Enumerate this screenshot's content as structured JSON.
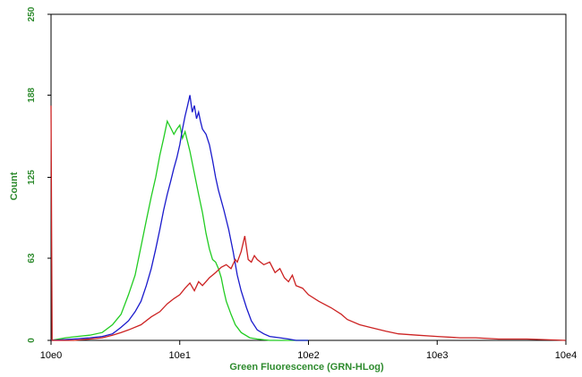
{
  "chart_data": {
    "type": "line",
    "title": "",
    "xlabel": "Green Fluorescence (GRN-HLog)",
    "ylabel": "Count",
    "x_scale": "log",
    "xlim": [
      1,
      10000
    ],
    "ylim": [
      0,
      250
    ],
    "x_ticks": [
      {
        "value": 1,
        "label": "10e0"
      },
      {
        "value": 10,
        "label": "10e1"
      },
      {
        "value": 100,
        "label": "10e2"
      },
      {
        "value": 1000,
        "label": "10e3"
      },
      {
        "value": 10000,
        "label": "10e4"
      }
    ],
    "y_ticks": [
      {
        "value": 0,
        "label": "0"
      },
      {
        "value": 63,
        "label": "63"
      },
      {
        "value": 125,
        "label": "125"
      },
      {
        "value": 188,
        "label": "188"
      },
      {
        "value": 250,
        "label": "250"
      }
    ],
    "grid": false,
    "legend": "none",
    "series": [
      {
        "color": "#22cc22",
        "points": [
          [
            1.0,
            0
          ],
          [
            1.3,
            2
          ],
          [
            1.6,
            3
          ],
          [
            2.0,
            4
          ],
          [
            2.5,
            6
          ],
          [
            3.0,
            12
          ],
          [
            3.5,
            20
          ],
          [
            4.0,
            35
          ],
          [
            4.5,
            50
          ],
          [
            5.0,
            72
          ],
          [
            5.5,
            92
          ],
          [
            6.0,
            110
          ],
          [
            6.5,
            125
          ],
          [
            7.0,
            142
          ],
          [
            7.5,
            155
          ],
          [
            8.0,
            168
          ],
          [
            8.5,
            163
          ],
          [
            9.0,
            158
          ],
          [
            9.5,
            162
          ],
          [
            10.0,
            165
          ],
          [
            10.5,
            155
          ],
          [
            11.0,
            160
          ],
          [
            12.0,
            145
          ],
          [
            13.0,
            128
          ],
          [
            14.0,
            112
          ],
          [
            15.0,
            98
          ],
          [
            16.0,
            82
          ],
          [
            17.0,
            70
          ],
          [
            18.0,
            62
          ],
          [
            19.0,
            60
          ],
          [
            20.0,
            55
          ],
          [
            21.0,
            48
          ],
          [
            22.0,
            38
          ],
          [
            23.0,
            30
          ],
          [
            25.0,
            20
          ],
          [
            27.0,
            12
          ],
          [
            30.0,
            6
          ],
          [
            35.0,
            2
          ],
          [
            40.0,
            1
          ],
          [
            50.0,
            0
          ],
          [
            70.0,
            0
          ],
          [
            100.0,
            0
          ]
        ]
      },
      {
        "color": "#1a1acc",
        "points": [
          [
            1.0,
            0
          ],
          [
            1.5,
            1
          ],
          [
            2.0,
            2
          ],
          [
            2.5,
            3
          ],
          [
            3.0,
            5
          ],
          [
            3.5,
            10
          ],
          [
            4.0,
            15
          ],
          [
            4.5,
            22
          ],
          [
            5.0,
            30
          ],
          [
            5.5,
            42
          ],
          [
            6.0,
            55
          ],
          [
            6.5,
            70
          ],
          [
            7.0,
            85
          ],
          [
            7.5,
            100
          ],
          [
            8.0,
            112
          ],
          [
            8.5,
            122
          ],
          [
            9.0,
            132
          ],
          [
            9.5,
            140
          ],
          [
            10.0,
            150
          ],
          [
            10.5,
            162
          ],
          [
            11.0,
            172
          ],
          [
            11.5,
            180
          ],
          [
            12.0,
            188
          ],
          [
            12.5,
            175
          ],
          [
            13.0,
            180
          ],
          [
            13.5,
            170
          ],
          [
            14.0,
            175
          ],
          [
            14.5,
            168
          ],
          [
            15.0,
            162
          ],
          [
            16.0,
            158
          ],
          [
            17.0,
            150
          ],
          [
            18.0,
            138
          ],
          [
            19.0,
            125
          ],
          [
            20.0,
            115
          ],
          [
            22.0,
            100
          ],
          [
            24.0,
            85
          ],
          [
            26.0,
            68
          ],
          [
            28.0,
            50
          ],
          [
            30.0,
            38
          ],
          [
            33.0,
            25
          ],
          [
            36.0,
            15
          ],
          [
            40.0,
            8
          ],
          [
            45.0,
            5
          ],
          [
            50.0,
            3
          ],
          [
            60.0,
            2
          ],
          [
            70.0,
            1
          ],
          [
            80.0,
            0
          ],
          [
            100.0,
            0
          ]
        ]
      },
      {
        "color": "#cc2222",
        "points": [
          [
            1.0,
            180
          ],
          [
            1.02,
            0
          ],
          [
            1.5,
            0
          ],
          [
            2.0,
            1
          ],
          [
            2.5,
            2
          ],
          [
            3.0,
            4
          ],
          [
            3.5,
            6
          ],
          [
            4.0,
            8
          ],
          [
            5.0,
            12
          ],
          [
            6.0,
            18
          ],
          [
            7.0,
            22
          ],
          [
            8.0,
            28
          ],
          [
            9.0,
            32
          ],
          [
            10.0,
            35
          ],
          [
            11.0,
            40
          ],
          [
            12.0,
            44
          ],
          [
            13.0,
            38
          ],
          [
            14.0,
            45
          ],
          [
            15.0,
            42
          ],
          [
            17.0,
            48
          ],
          [
            19.0,
            52
          ],
          [
            21.0,
            56
          ],
          [
            23.0,
            58
          ],
          [
            25.0,
            55
          ],
          [
            27.0,
            62
          ],
          [
            28.0,
            60
          ],
          [
            30.0,
            68
          ],
          [
            32.0,
            80
          ],
          [
            34.0,
            62
          ],
          [
            36.0,
            60
          ],
          [
            38.0,
            65
          ],
          [
            40.0,
            62
          ],
          [
            45.0,
            58
          ],
          [
            50.0,
            60
          ],
          [
            55.0,
            52
          ],
          [
            60.0,
            55
          ],
          [
            65.0,
            48
          ],
          [
            70.0,
            45
          ],
          [
            75.0,
            50
          ],
          [
            80.0,
            42
          ],
          [
            90.0,
            40
          ],
          [
            100.0,
            35
          ],
          [
            120.0,
            30
          ],
          [
            150.0,
            25
          ],
          [
            180.0,
            20
          ],
          [
            200.0,
            16
          ],
          [
            250.0,
            12
          ],
          [
            300.0,
            10
          ],
          [
            400.0,
            7
          ],
          [
            500.0,
            5
          ],
          [
            700.0,
            4
          ],
          [
            1000.0,
            3
          ],
          [
            1500.0,
            2
          ],
          [
            2000.0,
            2
          ],
          [
            3000.0,
            1
          ],
          [
            5000.0,
            1
          ],
          [
            10000.0,
            0
          ]
        ]
      }
    ]
  }
}
